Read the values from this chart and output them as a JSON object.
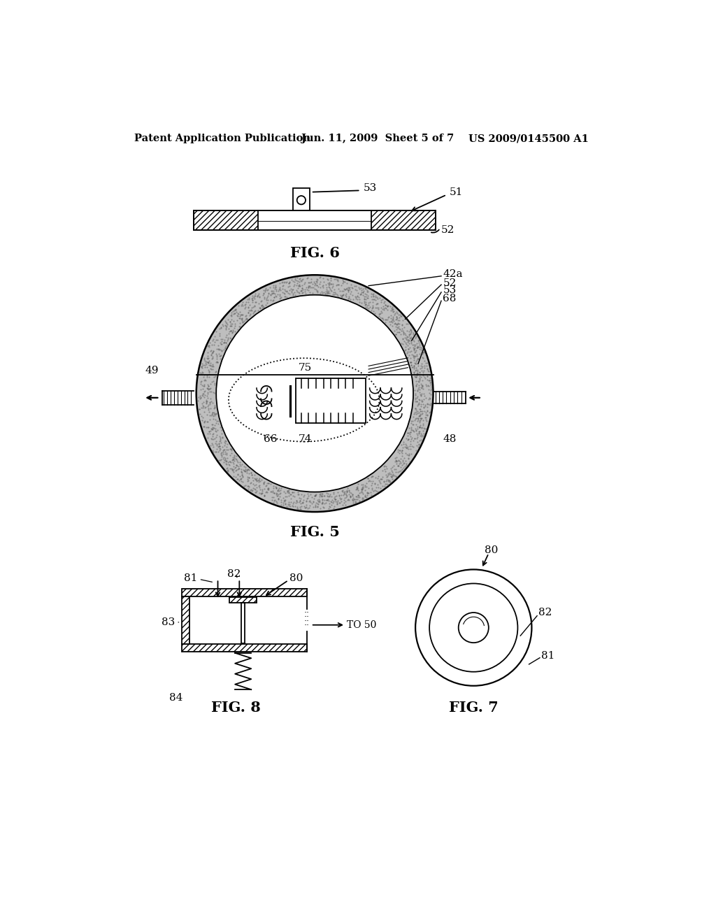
{
  "background_color": "#ffffff",
  "header_left": "Patent Application Publication",
  "header_center": "Jun. 11, 2009  Sheet 5 of 7",
  "header_right": "US 2009/0145500 A1",
  "header_fontsize": 11,
  "fig6_label": "FIG. 6",
  "fig5_label": "FIG. 5",
  "fig7_label": "FIG. 7",
  "fig8_label": "FIG. 8",
  "line_color": "#000000",
  "stipple_color": "#aaaaaa",
  "sandy_fill": "#bebebe"
}
